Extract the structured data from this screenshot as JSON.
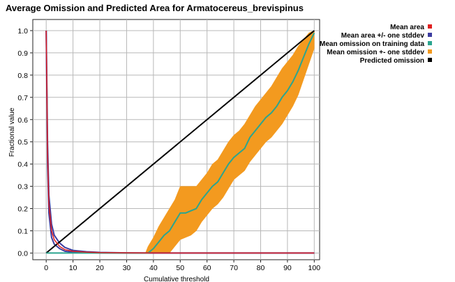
{
  "chart_data": {
    "type": "line",
    "title": "Average Omission and Predicted Area for Armatocereus_brevispinus",
    "xlabel": "Cumulative threshold",
    "ylabel": "Fractional value",
    "xlim": [
      -5,
      102
    ],
    "ylim": [
      -0.03,
      1.05
    ],
    "x_ticks": [
      "0",
      "10",
      "20",
      "30",
      "40",
      "50",
      "60",
      "70",
      "80",
      "90",
      "100"
    ],
    "y_ticks": [
      "0.0",
      "0.1",
      "0.2",
      "0.3",
      "0.4",
      "0.5",
      "0.6",
      "0.7",
      "0.8",
      "0.9",
      "1.0"
    ],
    "grid": true,
    "legend_position": "right",
    "series": [
      {
        "name": "Mean area",
        "color": "#e02020",
        "x": [
          0,
          0.5,
          1,
          2,
          3,
          5,
          7,
          10,
          15,
          20,
          30,
          40,
          50,
          60,
          70,
          80,
          90,
          100
        ],
        "values": [
          1.0,
          0.45,
          0.22,
          0.1,
          0.06,
          0.03,
          0.015,
          0.008,
          0.004,
          0.002,
          0.001,
          0.0,
          0.0,
          0.0,
          0.0,
          0.0,
          0.0,
          0.0
        ]
      },
      {
        "name": "Mean area +/- one stddev",
        "color": "#3c3ca0",
        "x": [
          0,
          0.5,
          1,
          2,
          3,
          5,
          7,
          10,
          15,
          20,
          30,
          40,
          50,
          60,
          70,
          80,
          90,
          100
        ],
        "upper": [
          1.0,
          0.5,
          0.26,
          0.13,
          0.08,
          0.045,
          0.025,
          0.012,
          0.006,
          0.003,
          0.001,
          0.0,
          0.0,
          0.0,
          0.0,
          0.0,
          0.0,
          0.0
        ],
        "lower": [
          1.0,
          0.4,
          0.18,
          0.07,
          0.04,
          0.02,
          0.008,
          0.004,
          0.002,
          0.001,
          0.0,
          0.0,
          0.0,
          0.0,
          0.0,
          0.0,
          0.0,
          0.0
        ]
      },
      {
        "name": "Mean omission on training data",
        "color": "#2ba58f",
        "x": [
          0,
          38,
          40,
          42,
          44,
          46,
          48,
          50,
          52,
          54,
          56,
          58,
          60,
          62,
          64,
          66,
          68,
          70,
          72,
          74,
          76,
          78,
          80,
          82,
          84,
          86,
          88,
          90,
          92,
          94,
          96,
          98,
          100
        ],
        "values": [
          0.0,
          0.0,
          0.02,
          0.05,
          0.08,
          0.1,
          0.14,
          0.18,
          0.18,
          0.19,
          0.2,
          0.24,
          0.27,
          0.3,
          0.32,
          0.36,
          0.4,
          0.43,
          0.45,
          0.47,
          0.52,
          0.55,
          0.58,
          0.61,
          0.63,
          0.66,
          0.7,
          0.73,
          0.77,
          0.82,
          0.88,
          0.94,
          0.99
        ]
      },
      {
        "name": "Mean omission +- one stddev",
        "color": "#f39a1f",
        "x": [
          37,
          38,
          40,
          42,
          44,
          46,
          48,
          50,
          52,
          54,
          56,
          58,
          60,
          62,
          64,
          66,
          68,
          70,
          72,
          74,
          76,
          78,
          80,
          82,
          84,
          86,
          88,
          90,
          92,
          94,
          96,
          98,
          100
        ],
        "upper": [
          0.0,
          0.03,
          0.07,
          0.12,
          0.16,
          0.2,
          0.24,
          0.3,
          0.3,
          0.3,
          0.3,
          0.33,
          0.36,
          0.4,
          0.42,
          0.46,
          0.5,
          0.53,
          0.55,
          0.58,
          0.62,
          0.66,
          0.69,
          0.72,
          0.75,
          0.79,
          0.83,
          0.86,
          0.89,
          0.93,
          0.96,
          0.99,
          1.0
        ],
        "lower": [
          0.0,
          0.0,
          0.0,
          0.0,
          0.0,
          0.0,
          0.03,
          0.06,
          0.07,
          0.08,
          0.1,
          0.14,
          0.17,
          0.2,
          0.22,
          0.25,
          0.29,
          0.33,
          0.35,
          0.37,
          0.41,
          0.44,
          0.47,
          0.5,
          0.52,
          0.55,
          0.58,
          0.62,
          0.66,
          0.71,
          0.78,
          0.85,
          0.92
        ]
      },
      {
        "name": "Predicted omission",
        "color": "#000000",
        "x": [
          0,
          100
        ],
        "values": [
          0.0,
          1.0
        ]
      }
    ]
  }
}
